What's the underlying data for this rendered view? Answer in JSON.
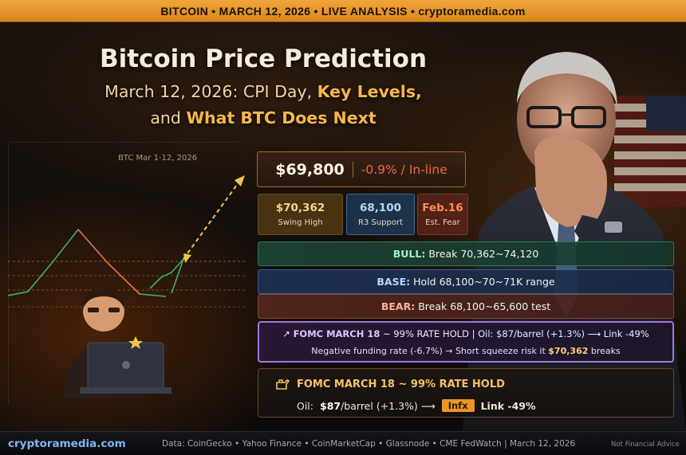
{
  "banner": {
    "text": "BITCOIN  •  MARCH 12, 2026  •  LIVE ANALYSIS  •  cryptoramedia.com"
  },
  "headline": {
    "title": "Bitcoin Price Prediction",
    "sub1_pre": "March 12, 2026: CPI Day, ",
    "sub1_hl": "Key Levels,",
    "sub2_pre": "and ",
    "sub2_hl": "What BTC Does Next"
  },
  "chart": {
    "label": "BTC Mar 1-12, 2026"
  },
  "price": {
    "value": "$69,800",
    "change": "-0.9% / In-line"
  },
  "stats": [
    {
      "value": "$70,362",
      "label": "Swing High"
    },
    {
      "value": "68,100",
      "label": "R3 Support"
    },
    {
      "value": "Feb.16",
      "label": "Est. Fear"
    }
  ],
  "scenarios": {
    "bull": {
      "key": "BULL:",
      "text": "Break 70,362~74,120"
    },
    "base": {
      "key": "BASE:",
      "text": "Hold 68,100~70~71K range"
    },
    "bear": {
      "key": "BEAR:",
      "text": "Break 68,100~65,600 test"
    }
  },
  "fomc_box": {
    "line1_key": "FOMC MARCH 18",
    "line1_rest": "~ 99% RATE HOLD | Oil: $87/barrel (+1.3%) ⟶ Link -49%",
    "line2_pre": "Negative funding rate (-6.7%) → Short squeeze risk it",
    "line2_hl": "$70,362",
    "line2_post": "breaks"
  },
  "fomc_card": {
    "title": "FOMC MARCH 18 ~ 99% RATE HOLD",
    "oil_pre": "Oil:",
    "oil_val": "$87",
    "oil_rest": "/barrel (+1.3%) ⟶",
    "badge": "Infx",
    "link": "Link -49%"
  },
  "footer": {
    "brand": "cryptoramedia.com",
    "sources": "Data: CoinGecko • Yahoo Finance • CoinMarketCap • Glassnode • CME FedWatch  |  March 12, 2026",
    "disclaimer": "Not Financial Advice"
  },
  "colors": {
    "accent": "#e8961f",
    "bull": "#2f7a5c",
    "base": "#3b5f96",
    "bear": "#8a4332",
    "fomc": "#9d7ad6"
  }
}
